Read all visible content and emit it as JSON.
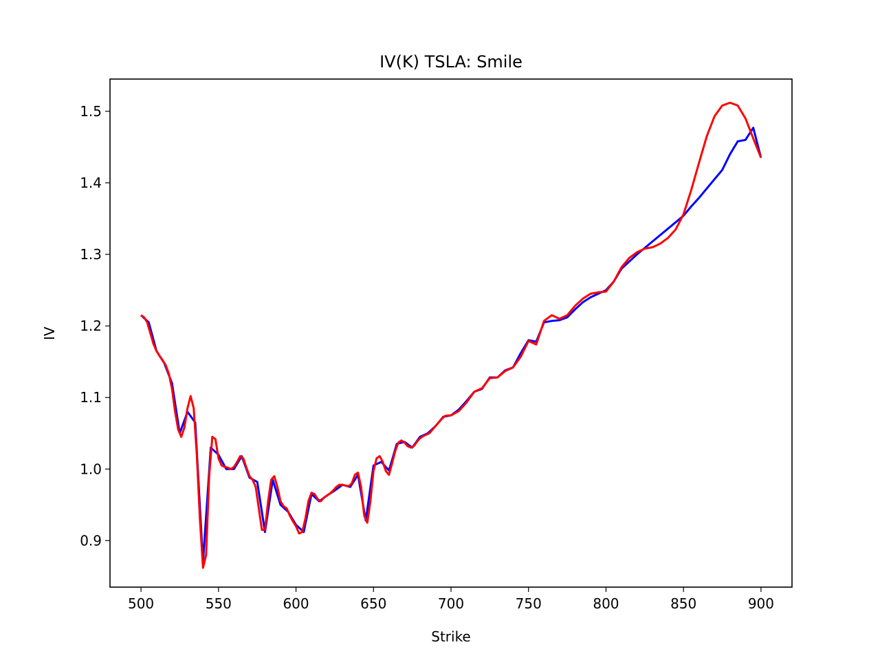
{
  "chart_data": {
    "type": "line",
    "title": "IV(K) TSLA: Smile",
    "xlabel": "Strike",
    "ylabel": "IV",
    "xlim": [
      480,
      920
    ],
    "ylim": [
      0.835,
      1.545
    ],
    "xticks": [
      500,
      550,
      600,
      650,
      700,
      750,
      800,
      850,
      900
    ],
    "xtick_labels": [
      "500",
      "550",
      "600",
      "650",
      "700",
      "750",
      "800",
      "850",
      "900"
    ],
    "yticks": [
      0.9,
      1.0,
      1.1,
      1.2,
      1.3,
      1.4,
      1.5
    ],
    "ytick_labels": [
      "0.9",
      "1.0",
      "1.1",
      "1.2",
      "1.3",
      "1.4",
      "1.5"
    ],
    "grid": false,
    "series": [
      {
        "color": "#0000ff",
        "x": [
          500,
          505,
          510,
          515,
          520,
          525,
          530,
          535,
          540,
          545,
          550,
          555,
          560,
          565,
          570,
          575,
          580,
          585,
          590,
          595,
          600,
          605,
          610,
          615,
          620,
          625,
          630,
          635,
          640,
          645,
          650,
          655,
          660,
          665,
          670,
          675,
          680,
          685,
          690,
          695,
          700,
          705,
          710,
          715,
          720,
          725,
          730,
          735,
          740,
          745,
          750,
          755,
          760,
          765,
          770,
          775,
          780,
          785,
          790,
          795,
          800,
          805,
          810,
          815,
          820,
          825,
          830,
          835,
          840,
          845,
          850,
          855,
          860,
          865,
          870,
          875,
          880,
          885,
          890,
          895,
          900
        ],
        "y": [
          1.215,
          1.205,
          1.165,
          1.148,
          1.12,
          1.05,
          1.08,
          1.065,
          0.87,
          1.03,
          1.02,
          1.0,
          1.0,
          1.018,
          0.988,
          0.982,
          0.912,
          0.985,
          0.95,
          0.94,
          0.922,
          0.912,
          0.965,
          0.955,
          0.963,
          0.97,
          0.978,
          0.975,
          0.992,
          0.928,
          1.005,
          1.01,
          0.998,
          1.035,
          1.038,
          1.03,
          1.045,
          1.05,
          1.06,
          1.073,
          1.075,
          1.083,
          1.095,
          1.108,
          1.112,
          1.128,
          1.128,
          1.138,
          1.142,
          1.162,
          1.18,
          1.178,
          1.205,
          1.207,
          1.208,
          1.212,
          1.223,
          1.233,
          1.24,
          1.245,
          1.25,
          1.262,
          1.28,
          1.29,
          1.3,
          1.309,
          1.318,
          1.327,
          1.336,
          1.345,
          1.354,
          1.367,
          1.379,
          1.392,
          1.405,
          1.418,
          1.44,
          1.458,
          1.46,
          1.477,
          1.435
        ]
      },
      {
        "color": "#ff0000",
        "x": [
          500,
          502,
          504,
          506,
          508,
          510,
          512,
          514,
          516,
          518,
          520,
          522,
          524,
          526,
          528,
          530,
          532,
          534,
          536,
          538,
          540,
          542,
          544,
          546,
          548,
          550,
          552,
          554,
          556,
          558,
          560,
          562,
          564,
          566,
          568,
          570,
          572,
          574,
          576,
          578,
          580,
          582,
          584,
          586,
          588,
          590,
          592,
          594,
          596,
          598,
          600,
          602,
          604,
          606,
          608,
          610,
          612,
          614,
          616,
          618,
          620,
          622,
          624,
          626,
          628,
          630,
          632,
          634,
          636,
          638,
          640,
          642,
          644,
          646,
          648,
          650,
          652,
          654,
          656,
          658,
          660,
          662,
          664,
          666,
          668,
          670,
          672,
          674,
          676,
          678,
          680,
          682,
          684,
          686,
          688,
          690,
          692,
          694,
          696,
          698,
          700,
          705,
          710,
          715,
          720,
          725,
          730,
          735,
          740,
          745,
          750,
          755,
          760,
          765,
          770,
          775,
          780,
          785,
          790,
          795,
          800,
          805,
          810,
          815,
          820,
          825,
          830,
          835,
          840,
          845,
          850,
          855,
          860,
          865,
          870,
          875,
          880,
          885,
          890,
          895,
          900
        ],
        "y": [
          1.215,
          1.212,
          1.205,
          1.19,
          1.175,
          1.165,
          1.158,
          1.152,
          1.145,
          1.133,
          1.112,
          1.08,
          1.055,
          1.045,
          1.058,
          1.085,
          1.102,
          1.085,
          1.02,
          0.93,
          0.862,
          0.88,
          0.99,
          1.045,
          1.042,
          1.015,
          1.005,
          1.003,
          1.002,
          1.0,
          1.003,
          1.01,
          1.018,
          1.015,
          1.002,
          0.99,
          0.985,
          0.975,
          0.945,
          0.915,
          0.915,
          0.955,
          0.985,
          0.99,
          0.975,
          0.955,
          0.948,
          0.945,
          0.935,
          0.927,
          0.92,
          0.91,
          0.912,
          0.93,
          0.955,
          0.967,
          0.965,
          0.958,
          0.955,
          0.96,
          0.963,
          0.966,
          0.97,
          0.975,
          0.978,
          0.978,
          0.977,
          0.976,
          0.98,
          0.992,
          0.995,
          0.975,
          0.935,
          0.925,
          0.955,
          0.997,
          1.015,
          1.018,
          1.01,
          0.997,
          0.992,
          1.008,
          1.025,
          1.037,
          1.04,
          1.037,
          1.032,
          1.03,
          1.032,
          1.038,
          1.043,
          1.046,
          1.048,
          1.05,
          1.055,
          1.06,
          1.065,
          1.07,
          1.074,
          1.075,
          1.075,
          1.081,
          1.093,
          1.108,
          1.113,
          1.127,
          1.128,
          1.137,
          1.142,
          1.157,
          1.179,
          1.174,
          1.207,
          1.215,
          1.21,
          1.215,
          1.228,
          1.238,
          1.245,
          1.247,
          1.248,
          1.262,
          1.282,
          1.295,
          1.303,
          1.308,
          1.31,
          1.315,
          1.323,
          1.335,
          1.356,
          1.39,
          1.428,
          1.465,
          1.493,
          1.508,
          1.512,
          1.508,
          1.49,
          1.462,
          1.435
        ]
      }
    ]
  }
}
